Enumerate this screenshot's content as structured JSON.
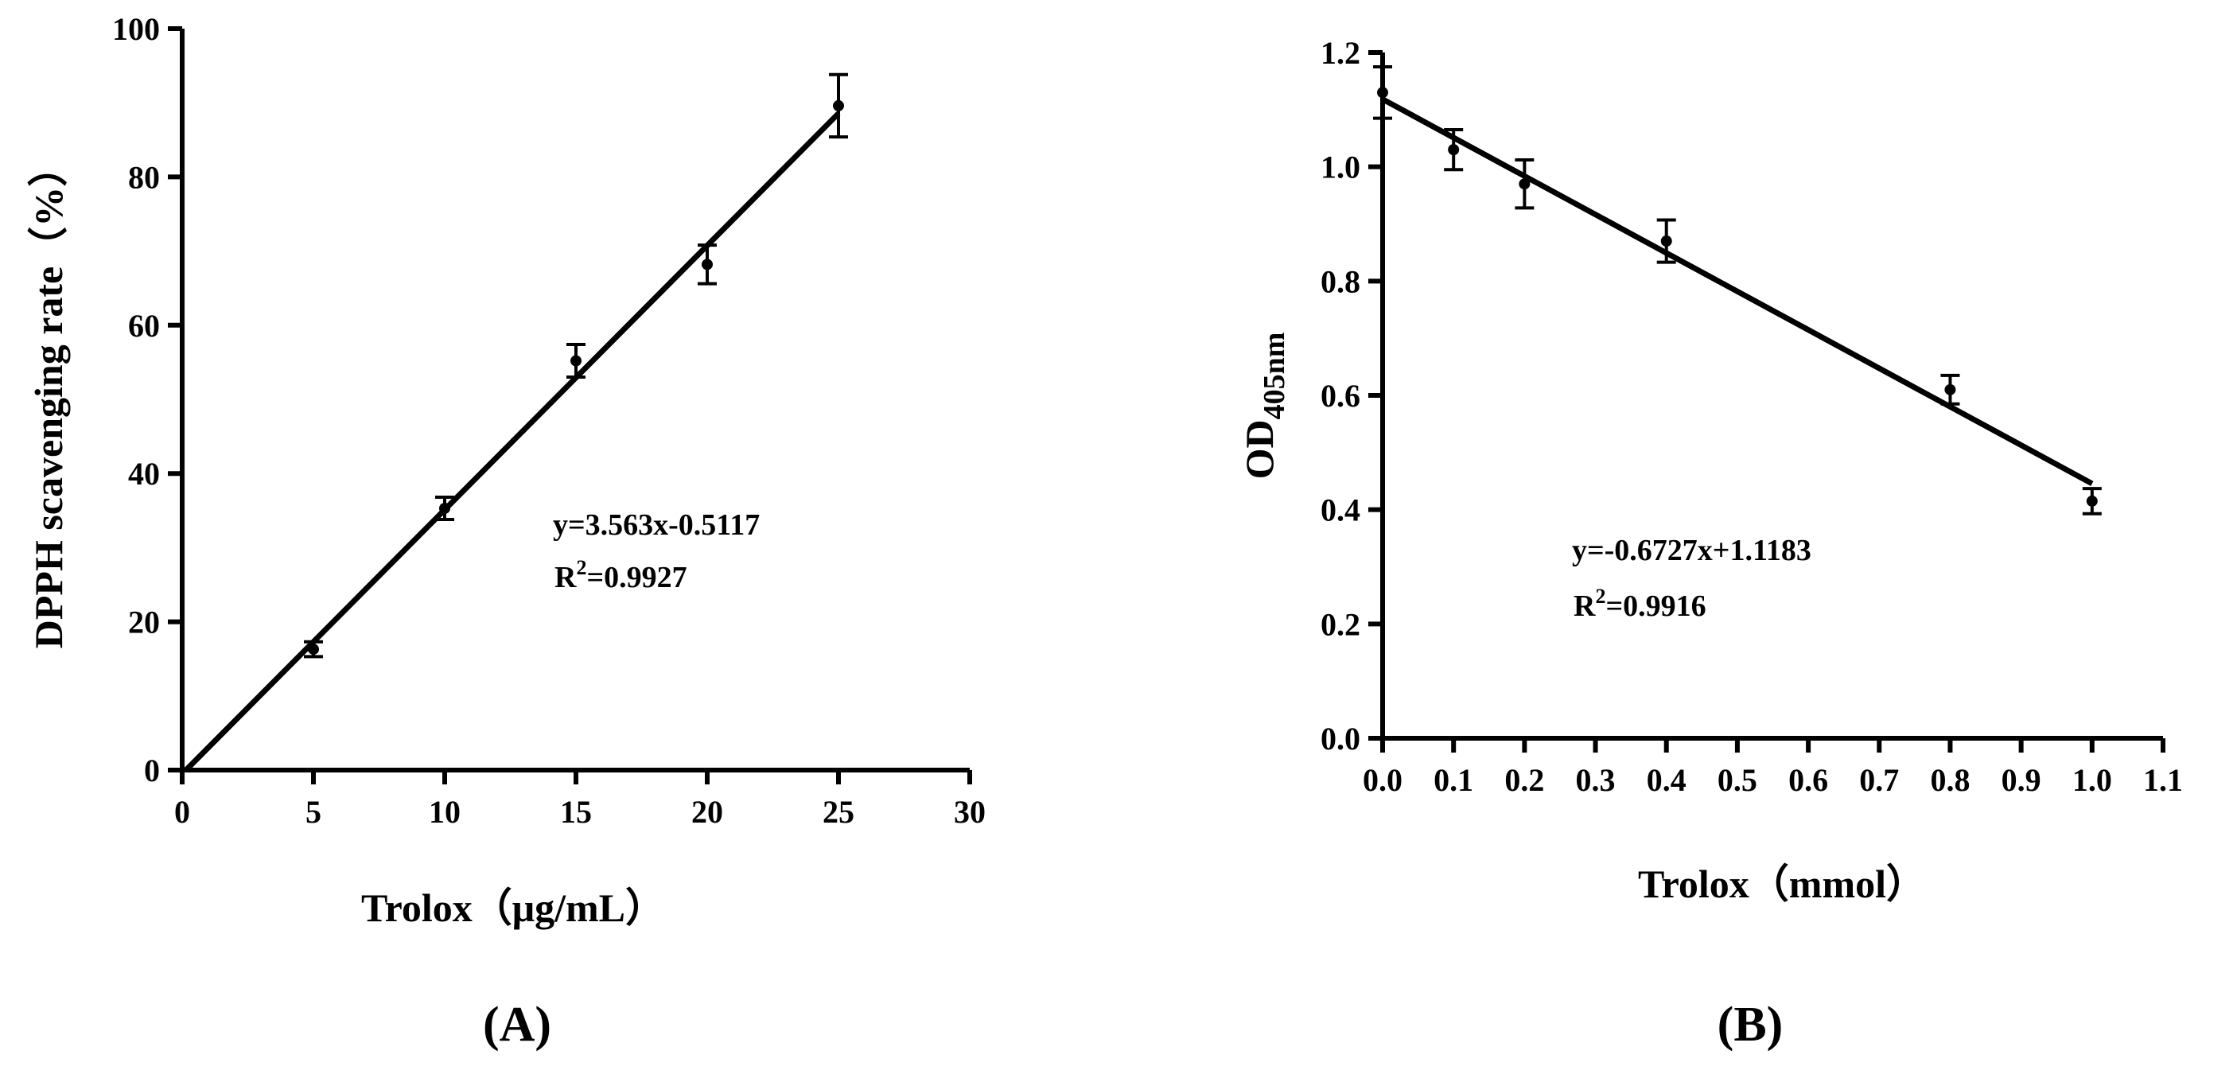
{
  "chart_data": [
    {
      "type": "scatter",
      "panel_label": "(A)",
      "xlabel": "Trolox（μg/mL）",
      "ylabel": "DPPH scavenging rate（%）",
      "xlim": [
        0,
        30
      ],
      "ylim": [
        0,
        100
      ],
      "xticks": [
        "0",
        "5",
        "10",
        "15",
        "20",
        "25",
        "30"
      ],
      "yticks": [
        "0",
        "20",
        "40",
        "60",
        "80",
        "100"
      ],
      "points": [
        {
          "x": 5,
          "y": 16.3,
          "err": 1.0
        },
        {
          "x": 10,
          "y": 35.3,
          "err": 1.5
        },
        {
          "x": 15,
          "y": 55.2,
          "err": 2.2
        },
        {
          "x": 20,
          "y": 68.2,
          "err": 2.6
        },
        {
          "x": 25,
          "y": 89.6,
          "err": 4.2
        }
      ],
      "fit": {
        "slope": 3.563,
        "intercept": -0.5117,
        "x_range": [
          0,
          25
        ]
      },
      "equation": "y=3.563x-0.5117",
      "r2": {
        "base": "R",
        "sup": "2",
        "rest": "=0.9927"
      }
    },
    {
      "type": "scatter",
      "panel_label": "(B)",
      "xlabel": "Trolox（mmol）",
      "ylabel": {
        "main": "OD",
        "sub": "405nm"
      },
      "xlim": [
        0,
        1.1
      ],
      "ylim": [
        0,
        1.2
      ],
      "xticks": [
        "0.0",
        "0.1",
        "0.2",
        "0.3",
        "0.4",
        "0.5",
        "0.6",
        "0.7",
        "0.8",
        "0.9",
        "1.0",
        "1.1"
      ],
      "yticks": [
        "0.0",
        "0.2",
        "0.4",
        "0.6",
        "0.8",
        "1.0",
        "1.2"
      ],
      "points": [
        {
          "x": 0.0,
          "y": 1.13,
          "err": 0.045
        },
        {
          "x": 0.1,
          "y": 1.03,
          "err": 0.035
        },
        {
          "x": 0.2,
          "y": 0.97,
          "err": 0.042
        },
        {
          "x": 0.4,
          "y": 0.87,
          "err": 0.037
        },
        {
          "x": 0.8,
          "y": 0.61,
          "err": 0.025
        },
        {
          "x": 1.0,
          "y": 0.415,
          "err": 0.022
        }
      ],
      "fit": {
        "slope": -0.6727,
        "intercept": 1.1183,
        "x_range": [
          0,
          1.0
        ]
      },
      "equation": "y=-0.6727x+1.1183",
      "r2": {
        "base": "R",
        "sup": "2",
        "rest": "=0.9916"
      }
    }
  ]
}
